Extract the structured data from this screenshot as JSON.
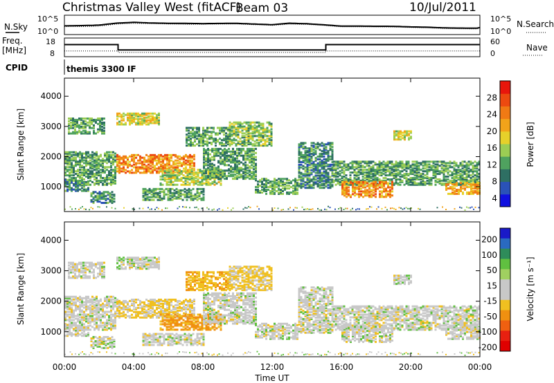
{
  "header": {
    "title": "Christmas Valley West (fitACF)",
    "beam": "Beam 03",
    "date": "10/Jul/2011"
  },
  "chart_data": [
    {
      "type": "line",
      "name": "noise-panel",
      "left_label": "N.Sky",
      "right_label": "N.Search",
      "left_ticks": [
        "10^5",
        "10^0"
      ],
      "right_ticks": [
        "10^5",
        "10^0"
      ],
      "x_hours": [
        0,
        1,
        2,
        3,
        4,
        5,
        6,
        7,
        8,
        9,
        10,
        11,
        12,
        13,
        14,
        15,
        16,
        17,
        18,
        19,
        20,
        21,
        22,
        23,
        24
      ],
      "sky": [
        2.2,
        2.4,
        2.6,
        3.2,
        3.4,
        3.1,
        2.9,
        2.8,
        2.7,
        2.8,
        2.9,
        2.8,
        2.7,
        3.2,
        3.0,
        2.6,
        2.1,
        2.0,
        1.9,
        1.9,
        1.8,
        1.8,
        1.7,
        1.7,
        1.7
      ],
      "search": [
        2.0,
        2.1,
        2.3,
        2.9,
        3.1,
        2.9,
        2.7,
        2.5,
        2.5,
        2.6,
        2.7,
        2.6,
        2.5,
        2.9,
        2.8,
        2.4,
        1.9,
        1.8,
        1.7,
        1.7,
        1.6,
        1.6,
        1.5,
        1.5,
        1.5
      ]
    },
    {
      "type": "line",
      "name": "frequency-panel",
      "left_label_line1": "Freq.",
      "left_label_line2": "[MHz]",
      "right_label": "Nave",
      "left_ticks": [
        "18",
        "8"
      ],
      "right_ticks": [
        "60",
        "0"
      ],
      "freq_steps": [
        [
          0,
          15.5
        ],
        [
          3.1,
          15.5
        ],
        [
          3.1,
          12.0
        ],
        [
          15.1,
          12.0
        ],
        [
          15.1,
          15.5
        ],
        [
          24,
          15.5
        ]
      ],
      "nave_steps": [
        [
          0,
          20
        ],
        [
          3.1,
          20
        ],
        [
          3.1,
          14
        ],
        [
          15.1,
          14
        ],
        [
          15.1,
          20
        ],
        [
          24,
          20
        ]
      ]
    },
    {
      "type": "heatmap",
      "name": "power-panel",
      "cpid_label": "CPID",
      "cpid_text": "themis 3300 IF",
      "ylabel": "Slant Range [km]",
      "yticks": [
        1000,
        2000,
        3000,
        4000
      ],
      "ylim": [
        180,
        4600
      ],
      "colorbar_label": "Power [dB]",
      "colorbar_ticks": [
        4,
        8,
        12,
        16,
        20,
        24,
        28
      ],
      "colorbar_colors": [
        "#1010e0",
        "#2a52b8",
        "#2e6f63",
        "#4fa25f",
        "#9bcd54",
        "#e6d02a",
        "#f2a31a",
        "#f07a14",
        "#ec4a10",
        "#e8160c"
      ]
    },
    {
      "type": "heatmap",
      "name": "velocity-panel",
      "ylabel": "Slant Range [km]",
      "yticks": [
        1000,
        2000,
        3000,
        4000
      ],
      "ylim": [
        180,
        4600
      ],
      "xlabel": "Time UT",
      "xticks": [
        "00:00",
        "04:00",
        "08:00",
        "12:00",
        "16:00",
        "20:00",
        "00:00"
      ],
      "xlim_hours": [
        0,
        24
      ],
      "colorbar_label": "Velocity [m s⁻¹]",
      "colorbar_ticks": [
        "200",
        "100",
        "50",
        "15",
        "-15",
        "-50",
        "-100",
        "-200"
      ],
      "colorbar_colors": [
        "#1a1ac8",
        "#2a6ac0",
        "#2e8c5a",
        "#60c040",
        "#a0d060",
        "#c8c8c8",
        "#c8c8c8",
        "#f0c020",
        "#f09010",
        "#f06010",
        "#e82010",
        "#e00000"
      ]
    }
  ],
  "echo_regions": [
    {
      "t0": 0.2,
      "t1": 2.3,
      "r0": 2800,
      "r1": 3300,
      "power": 12,
      "vel": 0
    },
    {
      "t0": 0.0,
      "t1": 3.0,
      "r0": 1100,
      "r1": 2200,
      "power": 12,
      "vel": 0
    },
    {
      "t0": 0.0,
      "t1": 1.4,
      "r0": 900,
      "r1": 1300,
      "power": 10,
      "vel": 0
    },
    {
      "t0": 1.5,
      "t1": 2.9,
      "r0": 500,
      "r1": 900,
      "power": 10,
      "vel": 0
    },
    {
      "t0": 3.0,
      "t1": 5.5,
      "r0": 3100,
      "r1": 3500,
      "power": 18,
      "vel": 0
    },
    {
      "t0": 3.0,
      "t1": 7.5,
      "r0": 1500,
      "r1": 2100,
      "power": 24,
      "vel": -20
    },
    {
      "t0": 5.5,
      "t1": 9.0,
      "r0": 1100,
      "r1": 1600,
      "power": 16,
      "vel": -60
    },
    {
      "t0": 4.5,
      "t1": 8.0,
      "r0": 600,
      "r1": 1000,
      "power": 12,
      "vel": 0
    },
    {
      "t0": 7.0,
      "t1": 9.5,
      "r0": 2400,
      "r1": 3000,
      "power": 12,
      "vel": -40
    },
    {
      "t0": 8.0,
      "t1": 11.0,
      "r0": 1300,
      "r1": 2300,
      "power": 12,
      "vel": 0
    },
    {
      "t0": 9.5,
      "t1": 12.0,
      "r0": 2400,
      "r1": 3200,
      "power": 14,
      "vel": -20
    },
    {
      "t0": 11.0,
      "t1": 13.5,
      "r0": 800,
      "r1": 1300,
      "power": 12,
      "vel": 0
    },
    {
      "t0": 13.5,
      "t1": 15.5,
      "r0": 1000,
      "r1": 2500,
      "power": 10,
      "vel": 0
    },
    {
      "t0": 15.5,
      "t1": 24.0,
      "r0": 1100,
      "r1": 1900,
      "power": 12,
      "vel": 0
    },
    {
      "t0": 16.0,
      "t1": 19.0,
      "r0": 700,
      "r1": 1200,
      "power": 24,
      "vel": 0
    },
    {
      "t0": 19.0,
      "t1": 20.0,
      "r0": 2600,
      "r1": 2900,
      "power": 18,
      "vel": 0
    },
    {
      "t0": 22.0,
      "t1": 24.0,
      "r0": 800,
      "r1": 1200,
      "power": 22,
      "vel": 0
    }
  ]
}
